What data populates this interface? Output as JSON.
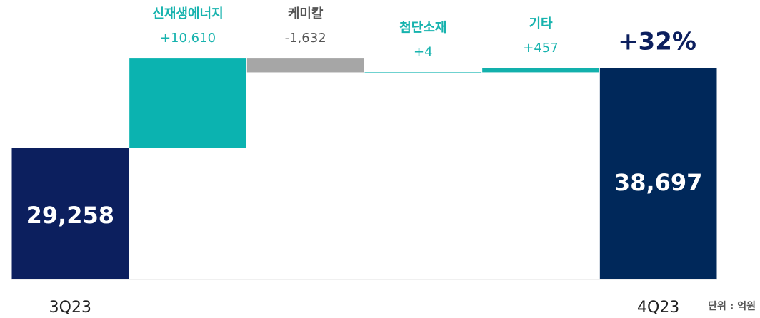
{
  "chart_data": {
    "type": "waterfall",
    "categories": [
      "3Q23",
      "신재생에너지",
      "케미칼",
      "첨단소재",
      "기타",
      "4Q23"
    ],
    "values": [
      29258,
      10610,
      -1632,
      4,
      457,
      38697
    ],
    "value_labels": [
      "29,258",
      "+10,610",
      "-1,632",
      "+4",
      "+457",
      "38,697"
    ],
    "measure": [
      "total",
      "relative",
      "relative",
      "relative",
      "relative",
      "total"
    ],
    "colors": [
      "#0c1f5e",
      "#0bb3b0",
      "#a6a6a6",
      "#0bb3b0",
      "#12b0ac",
      "#00285a"
    ],
    "label_colors": [
      "#222222",
      "#17b3ae",
      "#555555",
      "#17b3ae",
      "#17b3ae",
      "#222222"
    ],
    "ylim": [
      13750,
      41730
    ],
    "annotation": "+32%",
    "unit": "단위 : 억원"
  }
}
